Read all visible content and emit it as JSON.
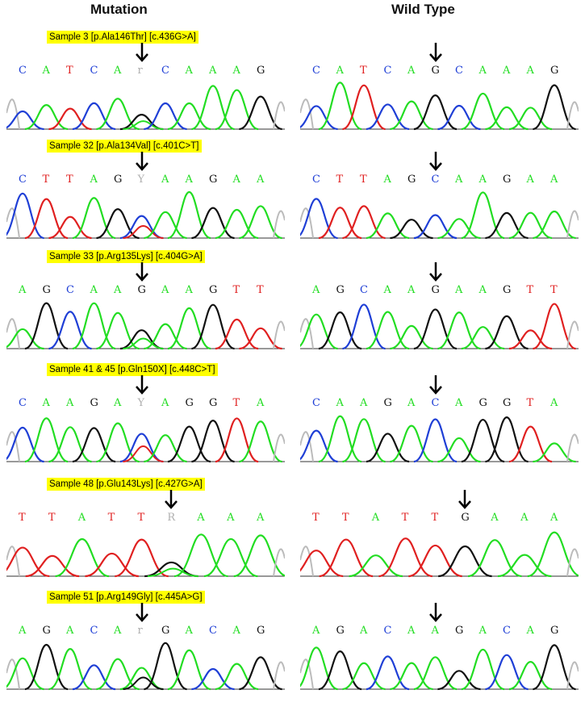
{
  "headers": {
    "mutation": "Mutation",
    "wild": "Wild Type"
  },
  "colors": {
    "A": "#22dd22",
    "C": "#1f3fd6",
    "G": "#111111",
    "T": "#e02020",
    "N": "#b0b0b0",
    "label_bg": "#ffff00"
  },
  "rows": [
    {
      "label": "Sample 3 [p.Ala146Thr] [c.436G>A]",
      "mutation": {
        "bases": [
          "C",
          "A",
          "T",
          "C",
          "A",
          "r",
          "C",
          "A",
          "A",
          "A",
          "G"
        ],
        "peaks": [
          "C",
          "A",
          "T",
          "C",
          "A",
          "G",
          "C",
          "A",
          "A",
          "A",
          "G"
        ],
        "hetero": 5,
        "alt": "A"
      },
      "wild": {
        "bases": [
          "C",
          "A",
          "T",
          "C",
          "A",
          "G",
          "C",
          "A",
          "A",
          "A",
          "G"
        ],
        "peaks": [
          "C",
          "A",
          "T",
          "C",
          "A",
          "G",
          "C",
          "A",
          "A",
          "A",
          "G"
        ],
        "marker": 5
      }
    },
    {
      "label": "Sample 32 [p.Ala134Val] [c.401C>T]",
      "mutation": {
        "bases": [
          "C",
          "T",
          "T",
          "A",
          "G",
          "Y",
          "A",
          "A",
          "G",
          "A",
          "A"
        ],
        "peaks": [
          "C",
          "T",
          "T",
          "A",
          "G",
          "C",
          "A",
          "A",
          "G",
          "A",
          "A"
        ],
        "hetero": 5,
        "alt": "T"
      },
      "wild": {
        "bases": [
          "C",
          "T",
          "T",
          "A",
          "G",
          "C",
          "A",
          "A",
          "G",
          "A",
          "A"
        ],
        "peaks": [
          "C",
          "T",
          "T",
          "A",
          "G",
          "C",
          "A",
          "A",
          "G",
          "A",
          "A"
        ],
        "marker": 5
      }
    },
    {
      "label": "Sample 33 [p.Arg135Lys] [c.404G>A]",
      "mutation": {
        "bases": [
          "A",
          "G",
          "C",
          "A",
          "A",
          "G",
          "A",
          "A",
          "G",
          "T",
          "T"
        ],
        "peaks": [
          "A",
          "G",
          "C",
          "A",
          "A",
          "G",
          "A",
          "A",
          "G",
          "T",
          "T"
        ],
        "hetero": 5,
        "alt": "A"
      },
      "wild": {
        "bases": [
          "A",
          "G",
          "C",
          "A",
          "A",
          "G",
          "A",
          "A",
          "G",
          "T",
          "T"
        ],
        "peaks": [
          "A",
          "G",
          "C",
          "A",
          "A",
          "G",
          "A",
          "A",
          "G",
          "T",
          "T"
        ],
        "marker": 5
      }
    },
    {
      "label": "Sample 41 & 45 [p.Gln150X] [c.448C>T]",
      "mutation": {
        "bases": [
          "C",
          "A",
          "A",
          "G",
          "A",
          "Y",
          "A",
          "G",
          "G",
          "T",
          "A"
        ],
        "peaks": [
          "C",
          "A",
          "A",
          "G",
          "A",
          "C",
          "A",
          "G",
          "G",
          "T",
          "A"
        ],
        "hetero": 5,
        "alt": "T"
      },
      "wild": {
        "bases": [
          "C",
          "A",
          "A",
          "G",
          "A",
          "C",
          "A",
          "G",
          "G",
          "T",
          "A"
        ],
        "peaks": [
          "C",
          "A",
          "A",
          "G",
          "A",
          "C",
          "A",
          "G",
          "G",
          "T",
          "A"
        ],
        "marker": 5
      }
    },
    {
      "label": "Sample 48 [p.Glu143Lys] [c.427G>A]",
      "mutation": {
        "bases": [
          "T",
          "T",
          "A",
          "T",
          "T",
          "R",
          "A",
          "A",
          "A"
        ],
        "peaks": [
          "T",
          "T",
          "A",
          "T",
          "T",
          "G",
          "A",
          "A",
          "A"
        ],
        "hetero": 5,
        "alt": "A"
      },
      "wild": {
        "bases": [
          "T",
          "T",
          "A",
          "T",
          "T",
          "G",
          "A",
          "A",
          "A"
        ],
        "peaks": [
          "T",
          "T",
          "A",
          "T",
          "T",
          "G",
          "A",
          "A",
          "A"
        ],
        "marker": 5
      }
    },
    {
      "label": "Sample 51 [p.Arg149Gly] [c.445A>G]",
      "mutation": {
        "bases": [
          "A",
          "G",
          "A",
          "C",
          "A",
          "r",
          "G",
          "A",
          "C",
          "A",
          "G"
        ],
        "peaks": [
          "A",
          "G",
          "A",
          "C",
          "A",
          "A",
          "G",
          "A",
          "C",
          "A",
          "G"
        ],
        "hetero": 5,
        "alt": "G"
      },
      "wild": {
        "bases": [
          "A",
          "G",
          "A",
          "C",
          "A",
          "A",
          "G",
          "A",
          "C",
          "A",
          "G"
        ],
        "peaks": [
          "A",
          "G",
          "A",
          "C",
          "A",
          "A",
          "G",
          "A",
          "C",
          "A",
          "G"
        ],
        "marker": 5
      }
    }
  ]
}
